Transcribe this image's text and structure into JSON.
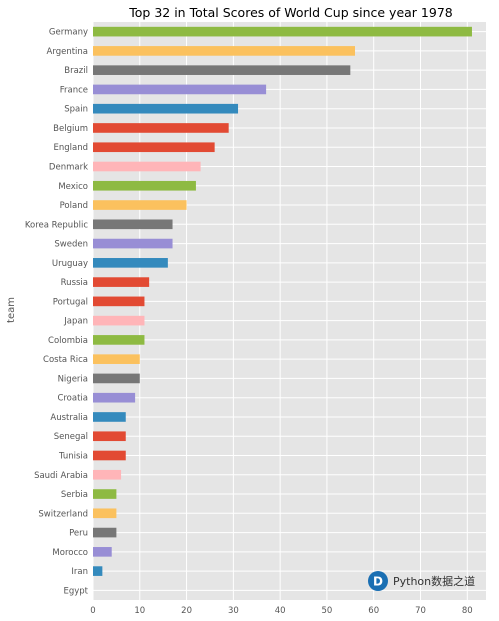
{
  "chart_data": {
    "type": "bar",
    "orientation": "horizontal",
    "title": "Top 32 in Total Scores of World Cup since year 1978",
    "xlabel": "",
    "ylabel": "team",
    "xlim": [
      0,
      84
    ],
    "xticks": [
      0,
      10,
      20,
      30,
      40,
      50,
      60,
      70,
      80
    ],
    "grid": true,
    "categories": [
      "Germany",
      "Argentina",
      "Brazil",
      "France",
      "Spain",
      "Belgium",
      "England",
      "Denmark",
      "Mexico",
      "Poland",
      "Korea Republic",
      "Sweden",
      "Uruguay",
      "Russia",
      "Portugal",
      "Japan",
      "Colombia",
      "Costa Rica",
      "Nigeria",
      "Croatia",
      "Australia",
      "Senegal",
      "Tunisia",
      "Saudi Arabia",
      "Serbia",
      "Switzerland",
      "Peru",
      "Morocco",
      "Iran",
      "Egypt"
    ],
    "values": [
      81,
      56,
      55,
      37,
      31,
      29,
      26,
      23,
      22,
      20,
      17,
      17,
      16,
      12,
      11,
      11,
      11,
      10,
      10,
      9,
      7,
      7,
      7,
      6,
      5,
      5,
      5,
      4,
      2,
      0
    ],
    "colors": [
      "#8eba42",
      "#fbc15e",
      "#777777",
      "#988ed5",
      "#348abd",
      "#e24a33",
      "#e24a33",
      "#ffb5b8",
      "#8eba42",
      "#fbc15e",
      "#777777",
      "#988ed5",
      "#348abd",
      "#e24a33",
      "#e24a33",
      "#ffb5b8",
      "#8eba42",
      "#fbc15e",
      "#777777",
      "#988ed5",
      "#348abd",
      "#e24a33",
      "#e24a33",
      "#ffb5b8",
      "#8eba42",
      "#fbc15e",
      "#777777",
      "#988ed5",
      "#348abd",
      "#e24a33"
    ],
    "background_color": "#e5e5e5"
  },
  "watermark": {
    "letter": "D",
    "text": "Python数据之道",
    "color": "#1a6fb3"
  }
}
